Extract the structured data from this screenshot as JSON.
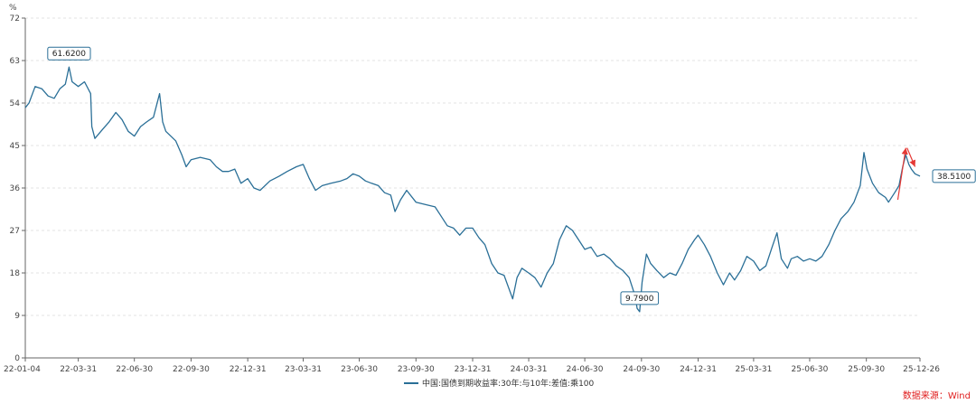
{
  "chart_data": {
    "type": "line",
    "unit_label": "%",
    "y_ticks": [
      "0",
      "9",
      "18",
      "27",
      "36",
      "45",
      "54",
      "63",
      "72"
    ],
    "ylim": [
      0,
      72
    ],
    "x_ticks": [
      "22-01-04",
      "22-03-31",
      "22-06-30",
      "22-09-30",
      "22-12-31",
      "23-03-31",
      "23-06-30",
      "23-09-30",
      "23-12-31",
      "24-03-31",
      "24-06-30",
      "24-09-30",
      "24-12-31",
      "25-03-31",
      "25-06-30",
      "25-09-30",
      "25-12-26"
    ],
    "grid": true,
    "series": [
      {
        "name": "中国:国债到期收益率:30年:与10年:差值:乘100",
        "color": "#2a6f97",
        "points": [
          [
            "22-01-04",
            53
          ],
          [
            "22-01-10",
            54
          ],
          [
            "22-01-20",
            57.5
          ],
          [
            "22-01-31",
            57
          ],
          [
            "22-02-10",
            55.5
          ],
          [
            "22-02-20",
            55
          ],
          [
            "22-03-01",
            57
          ],
          [
            "22-03-10",
            58
          ],
          [
            "22-03-16",
            61.62
          ],
          [
            "22-03-21",
            58.5
          ],
          [
            "22-03-31",
            57.5
          ],
          [
            "22-04-10",
            58.5
          ],
          [
            "22-04-20",
            56
          ],
          [
            "22-04-22",
            49
          ],
          [
            "22-04-27",
            46.5
          ],
          [
            "22-05-10",
            48.5
          ],
          [
            "22-05-20",
            50
          ],
          [
            "22-05-31",
            52
          ],
          [
            "22-06-10",
            50.5
          ],
          [
            "22-06-20",
            48
          ],
          [
            "22-06-30",
            47
          ],
          [
            "22-07-10",
            49
          ],
          [
            "22-07-20",
            50
          ],
          [
            "22-07-31",
            51
          ],
          [
            "22-08-10",
            56
          ],
          [
            "22-08-15",
            50
          ],
          [
            "22-08-20",
            48
          ],
          [
            "22-09-05",
            46
          ],
          [
            "22-09-15",
            43
          ],
          [
            "22-09-22",
            40.5
          ],
          [
            "22-09-30",
            42
          ],
          [
            "22-10-15",
            42.5
          ],
          [
            "22-10-31",
            42
          ],
          [
            "22-11-10",
            40.5
          ],
          [
            "22-11-20",
            39.5
          ],
          [
            "22-11-30",
            39.5
          ],
          [
            "22-12-10",
            40
          ],
          [
            "22-12-20",
            37
          ],
          [
            "22-12-31",
            38
          ],
          [
            "23-01-10",
            36
          ],
          [
            "23-01-20",
            35.5
          ],
          [
            "23-02-05",
            37.5
          ],
          [
            "23-02-20",
            38.5
          ],
          [
            "23-03-05",
            39.5
          ],
          [
            "23-03-20",
            40.5
          ],
          [
            "23-03-31",
            41
          ],
          [
            "23-04-10",
            38
          ],
          [
            "23-04-20",
            35.5
          ],
          [
            "23-05-01",
            36.5
          ],
          [
            "23-05-15",
            37
          ],
          [
            "23-05-31",
            37.5
          ],
          [
            "23-06-10",
            38
          ],
          [
            "23-06-20",
            39
          ],
          [
            "23-06-30",
            38.5
          ],
          [
            "23-07-10",
            37.5
          ],
          [
            "23-07-20",
            37
          ],
          [
            "23-07-31",
            36.5
          ],
          [
            "23-08-10",
            35
          ],
          [
            "23-08-20",
            34.5
          ],
          [
            "23-08-27",
            31
          ],
          [
            "23-09-05",
            33.5
          ],
          [
            "23-09-15",
            35.5
          ],
          [
            "23-09-30",
            33
          ],
          [
            "23-10-15",
            32.5
          ],
          [
            "23-10-31",
            32
          ],
          [
            "23-11-10",
            30
          ],
          [
            "23-11-20",
            28
          ],
          [
            "23-11-30",
            27.5
          ],
          [
            "23-12-10",
            26
          ],
          [
            "23-12-20",
            27.5
          ],
          [
            "23-12-31",
            27.5
          ],
          [
            "24-01-10",
            25.5
          ],
          [
            "24-01-20",
            24
          ],
          [
            "24-01-31",
            20
          ],
          [
            "24-02-10",
            18
          ],
          [
            "24-02-20",
            17.5
          ],
          [
            "24-03-05",
            12.5
          ],
          [
            "24-03-12",
            17
          ],
          [
            "24-03-20",
            19
          ],
          [
            "24-03-31",
            18
          ],
          [
            "24-04-10",
            17
          ],
          [
            "24-04-20",
            15
          ],
          [
            "24-04-30",
            18
          ],
          [
            "24-05-10",
            20
          ],
          [
            "24-05-20",
            25
          ],
          [
            "24-05-31",
            28
          ],
          [
            "24-06-10",
            27
          ],
          [
            "24-06-20",
            25
          ],
          [
            "24-06-30",
            23
          ],
          [
            "24-07-10",
            23.5
          ],
          [
            "24-07-20",
            21.5
          ],
          [
            "24-07-31",
            22
          ],
          [
            "24-08-10",
            21
          ],
          [
            "24-08-20",
            19.5
          ],
          [
            "24-08-31",
            18.5
          ],
          [
            "24-09-10",
            17
          ],
          [
            "24-09-20",
            13
          ],
          [
            "24-09-23",
            10.5
          ],
          [
            "24-09-27",
            9.79
          ],
          [
            "24-10-01",
            16
          ],
          [
            "24-10-08",
            22
          ],
          [
            "24-10-15",
            20
          ],
          [
            "24-10-25",
            18.5
          ],
          [
            "24-11-05",
            17
          ],
          [
            "24-11-15",
            18
          ],
          [
            "24-11-25",
            17.5
          ],
          [
            "24-12-05",
            20
          ],
          [
            "24-12-15",
            23
          ],
          [
            "24-12-25",
            25
          ],
          [
            "24-12-31",
            26
          ],
          [
            "25-01-10",
            24
          ],
          [
            "25-01-20",
            21.5
          ],
          [
            "25-01-31",
            18
          ],
          [
            "25-02-10",
            15.5
          ],
          [
            "25-02-20",
            18
          ],
          [
            "25-02-28",
            16.5
          ],
          [
            "25-03-10",
            18.5
          ],
          [
            "25-03-20",
            21.5
          ],
          [
            "25-03-31",
            20.5
          ],
          [
            "25-04-10",
            18.5
          ],
          [
            "25-04-20",
            19.5
          ],
          [
            "25-04-30",
            23.5
          ],
          [
            "25-05-08",
            26.5
          ],
          [
            "25-05-15",
            21
          ],
          [
            "25-05-25",
            19
          ],
          [
            "25-05-31",
            21
          ],
          [
            "25-06-10",
            21.5
          ],
          [
            "25-06-20",
            20.5
          ],
          [
            "25-06-30",
            21
          ],
          [
            "25-07-10",
            20.5
          ],
          [
            "25-07-20",
            21.5
          ],
          [
            "25-07-31",
            24
          ],
          [
            "25-08-10",
            27
          ],
          [
            "25-08-20",
            29.5
          ],
          [
            "25-08-31",
            31
          ],
          [
            "25-09-10",
            33
          ],
          [
            "25-09-20",
            36.5
          ],
          [
            "25-09-26",
            43.5
          ],
          [
            "25-10-01",
            40
          ],
          [
            "25-10-10",
            37
          ],
          [
            "25-10-20",
            35
          ],
          [
            "25-10-31",
            34
          ],
          [
            "25-11-05",
            33
          ],
          [
            "25-11-15",
            35
          ],
          [
            "25-11-22",
            36.5
          ],
          [
            "25-11-28",
            40.5
          ],
          [
            "25-12-03",
            43
          ],
          [
            "25-12-08",
            41
          ],
          [
            "25-12-12",
            40
          ],
          [
            "25-12-18",
            39
          ],
          [
            "25-12-26",
            38.51
          ]
        ]
      }
    ],
    "annotations": [
      {
        "label": "61.6200",
        "date": "22-03-16",
        "value": 61.62,
        "position": "above"
      },
      {
        "label": "9.7900",
        "date": "24-09-27",
        "value": 9.79,
        "position": "above"
      },
      {
        "label": "38.5100",
        "date": "25-12-26",
        "value": 38.51,
        "position": "right"
      }
    ],
    "arrows": [
      {
        "color": "#e53935",
        "from": [
          "25-11-20",
          33.5
        ],
        "to": [
          "25-12-03",
          44.5
        ]
      },
      {
        "color": "#e53935",
        "from": [
          "25-12-05",
          44.5
        ],
        "to": [
          "25-12-18",
          40.5
        ]
      }
    ],
    "legend": {
      "placement": "bottom-center",
      "label": "中国:国债到期收益率:30年:与10年:差值:乘100"
    },
    "source": "数据来源：Wind"
  }
}
